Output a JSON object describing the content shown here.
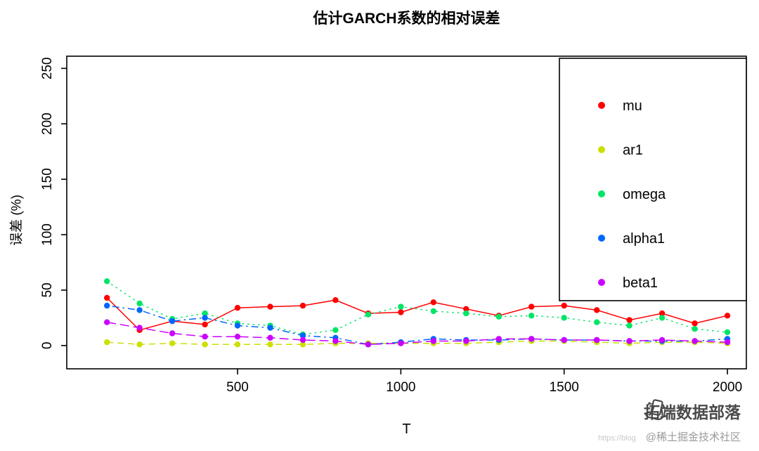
{
  "title": "估计GARCH系数的相对误差",
  "watermark": {
    "brand": "拓端数据部落",
    "url_text": "https://blog",
    "community": "@稀土掘金技术社区"
  },
  "chart_data": {
    "type": "line",
    "title": "估计GARCH系数的相对误差",
    "xlabel": "T",
    "ylabel": "误差 (%)",
    "x_ticks": [
      500,
      1000,
      1500,
      2000
    ],
    "y_ticks": [
      0,
      50,
      100,
      150,
      200,
      250
    ],
    "xlim": [
      -23,
      2058
    ],
    "ylim": [
      -21,
      261
    ],
    "grid": false,
    "legend_position": "top-right",
    "x": [
      100,
      200,
      300,
      400,
      500,
      600,
      700,
      800,
      900,
      1000,
      1100,
      1200,
      1300,
      1400,
      1500,
      1600,
      1700,
      1800,
      1900,
      2000
    ],
    "series": [
      {
        "name": "mu",
        "color": "#FF0000",
        "dash": "solid",
        "values": [
          43,
          14,
          22,
          19,
          34,
          35,
          36,
          41,
          29,
          30,
          39,
          33,
          27,
          35,
          36,
          32,
          23,
          29,
          20,
          27
        ]
      },
      {
        "name": "ar1",
        "color": "#CCE000",
        "dash": "dashed",
        "values": [
          3,
          1,
          2,
          1,
          1,
          1,
          1,
          2,
          2,
          2,
          2,
          2,
          3,
          4,
          4,
          3,
          2,
          3,
          3,
          2
        ]
      },
      {
        "name": "omega",
        "color": "#00E566",
        "dash": "dotted",
        "values": [
          58,
          38,
          24,
          29,
          20,
          18,
          10,
          14,
          28,
          35,
          31,
          29,
          26,
          27,
          25,
          21,
          18,
          25,
          15,
          12
        ]
      },
      {
        "name": "alpha1",
        "color": "#0066FF",
        "dash": "dotdash",
        "values": [
          36,
          32,
          22,
          25,
          18,
          16,
          9,
          7,
          1,
          3,
          6,
          5,
          5,
          6,
          5,
          5,
          4,
          4,
          4,
          6
        ]
      },
      {
        "name": "beta1",
        "color": "#CC00FF",
        "dash": "longdash",
        "values": [
          21,
          16,
          11,
          8,
          8,
          7,
          5,
          4,
          1,
          2,
          4,
          4,
          6,
          6,
          5,
          5,
          4,
          5,
          4,
          3
        ]
      }
    ]
  }
}
